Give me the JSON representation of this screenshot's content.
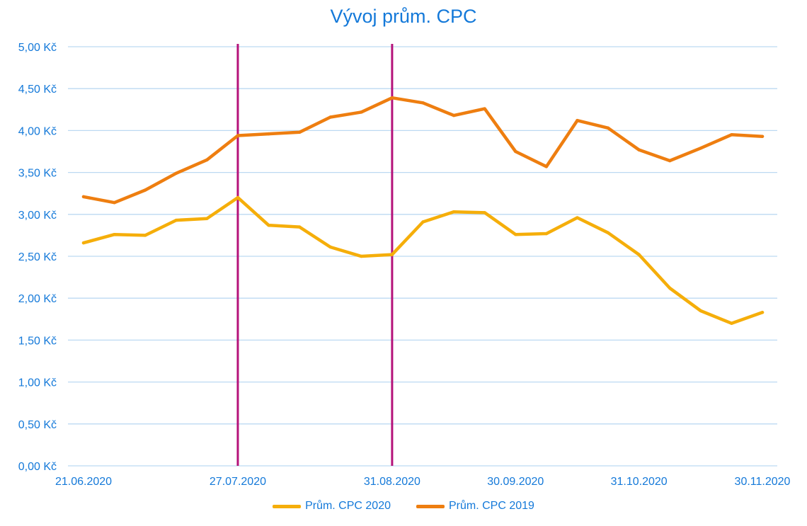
{
  "chart_data": {
    "type": "line",
    "title": "Vývoj prům. CPC",
    "xlabel": "",
    "ylabel": "",
    "ylim": [
      0,
      5
    ],
    "y_ticks": [
      "0,00 Kč",
      "0,50 Kč",
      "1,00 Kč",
      "1,50 Kč",
      "2,00 Kč",
      "2,50 Kč",
      "3,00 Kč",
      "3,50 Kč",
      "4,00 Kč",
      "4,50 Kč",
      "5,00 Kč"
    ],
    "y_tick_values": [
      0,
      0.5,
      1,
      1.5,
      2,
      2.5,
      3,
      3.5,
      4,
      4.5,
      5
    ],
    "x_tick_labels": [
      "21.06.2020",
      "27.07.2020",
      "31.08.2020",
      "30.09.2020",
      "31.10.2020",
      "30.11.2020"
    ],
    "x_tick_index": [
      0,
      5,
      10,
      14,
      18,
      22
    ],
    "grid": true,
    "legend_position": "bottom",
    "vertical_markers": [
      {
        "index": 5,
        "color": "#b5127a"
      },
      {
        "index": 10,
        "color": "#b5127a"
      }
    ],
    "series": [
      {
        "name": "Prům. CPC 2020",
        "color": "#f5ae0a",
        "values": [
          2.66,
          2.76,
          2.75,
          2.93,
          2.95,
          3.2,
          2.87,
          2.85,
          2.61,
          2.5,
          2.52,
          2.91,
          3.03,
          3.02,
          2.76,
          2.77,
          2.96,
          2.78,
          2.52,
          2.12,
          1.85,
          1.7,
          1.83
        ]
      },
      {
        "name": "Prům. CPC 2019",
        "color": "#ee7e10",
        "values": [
          3.21,
          3.14,
          3.29,
          3.49,
          3.65,
          3.94,
          3.96,
          3.98,
          4.16,
          4.22,
          4.39,
          4.33,
          4.18,
          4.26,
          3.75,
          3.57,
          4.12,
          4.03,
          3.77,
          3.64,
          3.79,
          3.95,
          3.93
        ]
      }
    ]
  }
}
